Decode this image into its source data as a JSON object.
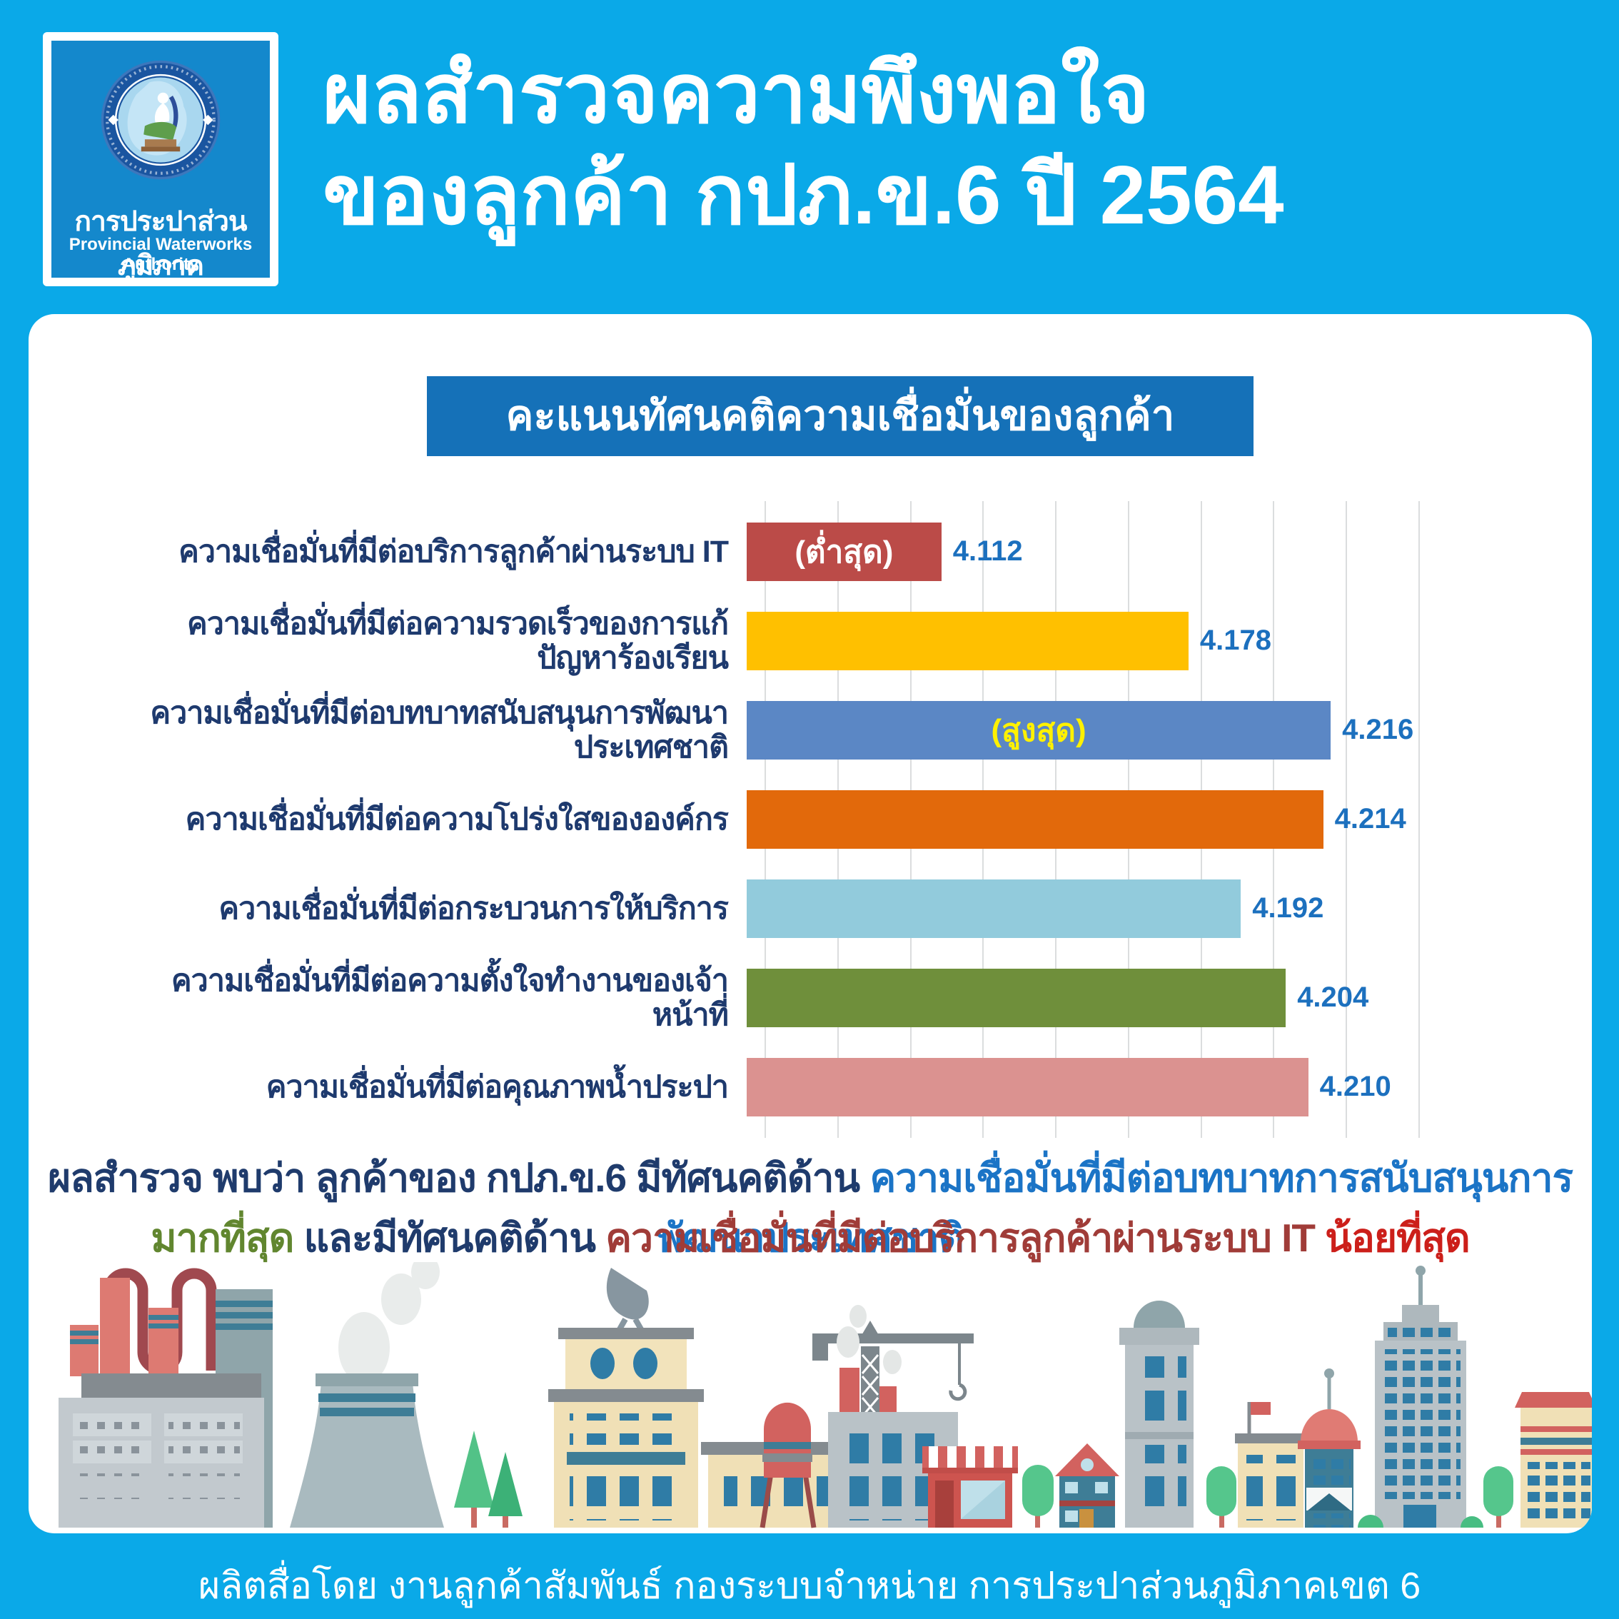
{
  "page": {
    "background_color": "#0AA9E8",
    "card_color": "#FFFFFF"
  },
  "header": {
    "logo": {
      "thai_name": "การประปาส่วนภูมิภาค",
      "english_name": "Provincial Waterworks Authority"
    },
    "title_line1": "ผลสำรวจความพึงพอใจ",
    "title_line2": "ของลูกค้า กปภ.ข.6 ปี 2564"
  },
  "chart_data": {
    "type": "bar",
    "orientation": "horizontal",
    "title": "คะแนนทัศนคติความเชื่อมั่นของลูกค้า กปภ.ข.6",
    "categories": [
      "ความเชื่อมั่นที่มีต่อบริการลูกค้าผ่านระบบ IT",
      "ความเชื่อมั่นที่มีต่อความรวดเร็วของการแก้ปัญหาร้องเรียน",
      "ความเชื่อมั่นที่มีต่อบทบาทสนับสนุนการพัฒนาประเทศชาติ",
      "ความเชื่อมั่นที่มีต่อความโปร่งใสขององค์กร",
      "ความเชื่อมั่นที่มีต่อกระบวนการให้บริการ",
      "ความเชื่อมั่นที่มีต่อความตั้งใจทำงานของเจ้าหน้าที่",
      "ความเชื่อมั่นที่มีต่อคุณภาพน้ำประปา"
    ],
    "values": [
      4.112,
      4.178,
      4.216,
      4.214,
      4.192,
      4.204,
      4.21
    ],
    "value_labels": [
      "4.112",
      "4.178",
      "4.216",
      "4.214",
      "4.192",
      "4.204",
      "4.210"
    ],
    "bar_colors": [
      "#BB4B48",
      "#FFC000",
      "#5B87C5",
      "#E2690B",
      "#92CBDC",
      "#6F8F3B",
      "#DB9290"
    ],
    "annotations": [
      {
        "index": 0,
        "text": "(ต่ำสุด)",
        "color": "#FFFFFF"
      },
      {
        "index": 2,
        "text": "(สูงสุด)",
        "color": "#FFF100"
      }
    ],
    "xlim": [
      4.06,
      4.24
    ],
    "grid_step": 0.02,
    "grid_on": true,
    "value_label_color": "#1C70BE",
    "banner_color": "#1571B8"
  },
  "summary": {
    "line1_part1": "ผลสำรวจ พบว่า ลูกค้าของ กปภ.ข.6 มีทัศนคติด้าน ",
    "line1_part2": "ความเชื่อมั่นที่มีต่อบทบาทการสนับสนุนการพัฒนาประเทศชาติ",
    "line2_part1": "มากที่สุด",
    "line2_part2": " และมีทัศนคติด้าน ",
    "line2_part3": "ความเชื่อมั่นที่มีต่อบริการลูกค้าผ่านระบบ IT",
    "line2_part4": " น้อยที่สุด"
  },
  "footer": {
    "credit": "ผลิตสื่อโดย งานลูกค้าสัมพันธ์ กองระบบจำหน่าย การประปาส่วนภูมิภาคเขต 6"
  }
}
